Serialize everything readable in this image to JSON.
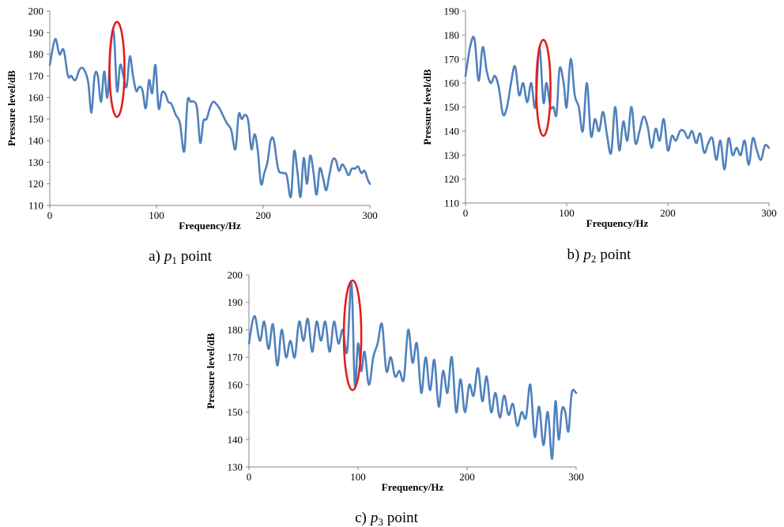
{
  "chart_data": [
    {
      "type": "line",
      "caption": {
        "prefix": "a)",
        "var": "p",
        "sub": "1",
        "suffix": "point"
      },
      "xlabel": "Frequency/Hz",
      "ylabel": "Pressure level/dB",
      "xlim": [
        0,
        300
      ],
      "ylim": [
        110,
        200
      ],
      "xticks": [
        0,
        100,
        200,
        300
      ],
      "yticks": [
        110,
        120,
        130,
        140,
        150,
        160,
        170,
        180,
        190,
        200
      ],
      "grid": false,
      "line_color": "#4f81bd",
      "highlight_color": "#e51c1c",
      "highlight": {
        "x_center": 63,
        "y_center": 173,
        "x_radius": 7,
        "y_radius": 22
      },
      "series": [
        {
          "x": [
            0,
            5,
            9,
            13,
            17,
            20,
            24,
            28,
            32,
            36,
            39,
            42,
            45,
            48,
            51,
            54,
            57,
            60,
            63,
            66,
            69,
            72,
            75,
            78,
            81,
            84,
            87,
            90,
            93,
            96,
            99,
            102,
            105,
            108,
            111,
            114,
            118,
            122,
            126,
            129,
            132,
            135,
            138,
            141,
            144,
            147,
            150,
            153,
            156,
            159,
            162,
            166,
            170,
            174,
            177,
            180,
            183,
            186,
            189,
            192,
            195,
            198,
            201,
            204,
            207,
            210,
            214,
            218,
            222,
            226,
            229,
            232,
            235,
            238,
            241,
            244,
            247,
            250,
            253,
            256,
            259,
            262,
            265,
            268,
            271,
            274,
            277,
            280,
            283,
            286,
            289,
            292,
            295,
            298,
            300
          ],
          "y": [
            175,
            187,
            180,
            182,
            170,
            170,
            168,
            173,
            173,
            167,
            153,
            170,
            170,
            158,
            172,
            160,
            183,
            190,
            163,
            175,
            170,
            165,
            179,
            170,
            163,
            165,
            163,
            155,
            168,
            162,
            175,
            155,
            162,
            162,
            158,
            157,
            152,
            148,
            135,
            158,
            158,
            158,
            155,
            139,
            149,
            150,
            155,
            158,
            157,
            155,
            152,
            148,
            145,
            136,
            152,
            150,
            152,
            149,
            136,
            143,
            135,
            120,
            125,
            130,
            140,
            140,
            127,
            125,
            124,
            114,
            135,
            126,
            114,
            132,
            120,
            133,
            126,
            115,
            127,
            123,
            117,
            124,
            131,
            131,
            126,
            129,
            127,
            124,
            127,
            127,
            128,
            125,
            126,
            122,
            120
          ]
        }
      ]
    },
    {
      "type": "line",
      "caption": {
        "prefix": "b)",
        "var": "p",
        "sub": "2",
        "suffix": "point"
      },
      "xlabel": "Frequency/Hz",
      "ylabel": "Pressure level/dB",
      "xlim": [
        0,
        300
      ],
      "ylim": [
        110,
        190
      ],
      "xticks": [
        0,
        100,
        200,
        300
      ],
      "yticks": [
        110,
        120,
        130,
        140,
        150,
        160,
        170,
        180,
        190
      ],
      "grid": false,
      "line_color": "#4f81bd",
      "highlight_color": "#e51c1c",
      "highlight": {
        "x_center": 77,
        "y_center": 158,
        "x_radius": 7,
        "y_radius": 20
      },
      "series": [
        {
          "x": [
            0,
            5,
            9,
            13,
            17,
            21,
            25,
            29,
            33,
            37,
            41,
            45,
            49,
            53,
            57,
            61,
            65,
            69,
            73,
            77,
            80,
            84,
            87,
            90,
            93,
            97,
            100,
            104,
            108,
            112,
            116,
            120,
            124,
            128,
            132,
            136,
            140,
            144,
            148,
            152,
            156,
            160,
            164,
            168,
            172,
            176,
            180,
            184,
            188,
            192,
            196,
            200,
            204,
            208,
            212,
            216,
            220,
            224,
            228,
            232,
            236,
            240,
            244,
            248,
            252,
            256,
            260,
            264,
            268,
            272,
            276,
            280,
            284,
            288,
            292,
            296,
            300
          ],
          "y": [
            163,
            176,
            178,
            161,
            175,
            165,
            160,
            163,
            158,
            147,
            150,
            160,
            167,
            155,
            160,
            152,
            160,
            150,
            175,
            152,
            160,
            150,
            150,
            147,
            166,
            160,
            150,
            170,
            155,
            150,
            140,
            160,
            138,
            145,
            140,
            148,
            138,
            131,
            150,
            132,
            144,
            136,
            150,
            135,
            140,
            146,
            142,
            133,
            141,
            136,
            145,
            132,
            138,
            136,
            140,
            140,
            137,
            140,
            135,
            139,
            131,
            135,
            137,
            128,
            136,
            124,
            137,
            130,
            133,
            130,
            136,
            126,
            137,
            132,
            128,
            134,
            133
          ]
        }
      ]
    },
    {
      "type": "line",
      "caption": {
        "prefix": "c)",
        "var": "p",
        "sub": "3",
        "suffix": "point"
      },
      "xlabel": "Frequency/Hz",
      "ylabel": "Pressure level/dB",
      "xlim": [
        0,
        300
      ],
      "ylim": [
        130,
        200
      ],
      "xticks": [
        0,
        100,
        200,
        300
      ],
      "yticks": [
        130,
        140,
        150,
        160,
        170,
        180,
        190,
        200
      ],
      "grid": false,
      "line_color": "#4f81bd",
      "highlight_color": "#e51c1c",
      "highlight": {
        "x_center": 95,
        "y_center": 178,
        "x_radius": 8,
        "y_radius": 20
      },
      "series": [
        {
          "x": [
            0,
            5,
            10,
            14,
            18,
            22,
            26,
            30,
            34,
            38,
            42,
            46,
            50,
            54,
            58,
            62,
            66,
            70,
            74,
            78,
            82,
            86,
            90,
            94,
            97,
            100,
            103,
            106,
            110,
            114,
            118,
            122,
            126,
            130,
            134,
            138,
            142,
            146,
            150,
            154,
            158,
            162,
            166,
            170,
            174,
            178,
            182,
            186,
            190,
            194,
            198,
            202,
            206,
            210,
            214,
            218,
            222,
            226,
            230,
            234,
            238,
            242,
            246,
            250,
            254,
            258,
            262,
            266,
            270,
            274,
            278,
            281,
            284,
            287,
            290,
            293,
            296,
            300
          ],
          "y": [
            175,
            185,
            176,
            183,
            173,
            182,
            167,
            180,
            170,
            176,
            170,
            183,
            176,
            184,
            172,
            183,
            176,
            183,
            172,
            183,
            175,
            180,
            172,
            197,
            160,
            175,
            165,
            172,
            160,
            170,
            175,
            182,
            165,
            170,
            163,
            165,
            162,
            180,
            168,
            175,
            157,
            170,
            158,
            169,
            152,
            165,
            157,
            170,
            150,
            162,
            150,
            160,
            156,
            166,
            154,
            163,
            150,
            157,
            148,
            156,
            149,
            153,
            145,
            150,
            148,
            160,
            141,
            152,
            138,
            150,
            133,
            154,
            140,
            151,
            150,
            143,
            157,
            157
          ]
        }
      ]
    }
  ]
}
